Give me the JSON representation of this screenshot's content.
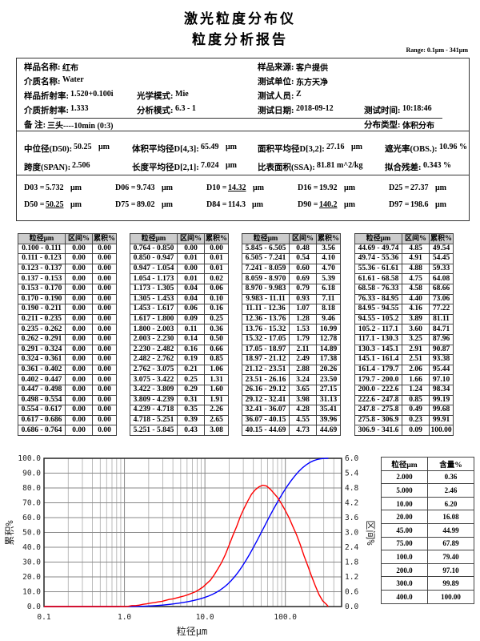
{
  "header": {
    "title1": "激光粒度分布仪",
    "title2": "粒度分析报告",
    "range": "Range: 0.1μm - 341μm"
  },
  "info": {
    "sample_name_label": "样品名称:",
    "sample_name": "红布",
    "medium_name_label": "介质名称:",
    "medium_name": "Water",
    "sample_ri_label": "样品折射率:",
    "sample_ri": "1.520+0.100i",
    "optical_model_label": "光学模式:",
    "optical_model": "Mie",
    "medium_ri_label": "介质折射率:",
    "medium_ri": "1.333",
    "analysis_mode_label": "分析模式:",
    "analysis_mode": "6.3 - 1",
    "remark_label": "备  注:",
    "remark": "三头----10min  (0:3)",
    "source_label": "样品来源:",
    "source": "客户提供",
    "unit_label": "测试单位:",
    "unit": "东方天净",
    "operator_label": "测试人员:",
    "operator": "Z",
    "date_label": "测试日期:",
    "date": "2018-09-12",
    "time_label": "测试时间:",
    "time": "10:18:46",
    "dist_type_label": "分布类型:",
    "dist_type": "体积分布"
  },
  "stats": {
    "d50_label": "中位径(D50):",
    "d50": "50.25",
    "d50_unit": "μm",
    "d43_label": "体积平均径D[4,3]:",
    "d43": "65.49",
    "d43_unit": "μm",
    "d32_label": "面积平均径D[3,2]:",
    "d32": "27.16",
    "d32_unit": "μm",
    "obs_label": "遮光率(OBS.):",
    "obs": "10.96 %",
    "span_label": "跨度(SPAN):",
    "span": "2.506",
    "d21_label": "长度平均径D[2,1]:",
    "d21": "7.024",
    "d21_unit": "μm",
    "ssa_label": "比表面积(SSA):",
    "ssa": "81.81  m^2/kg",
    "residual_label": "拟合残差:",
    "residual": "0.343  %"
  },
  "dvalues": [
    {
      "label": "D03 =",
      "value": "5.732",
      "unit": "μm",
      "underline": false
    },
    {
      "label": "D06 =",
      "value": "9.743",
      "unit": "μm",
      "underline": false
    },
    {
      "label": "D10 =",
      "value": "14.32",
      "unit": "μm",
      "underline": true
    },
    {
      "label": "D16 =",
      "value": "19.92",
      "unit": "μm",
      "underline": false
    },
    {
      "label": "D25 =",
      "value": "27.37",
      "unit": "μm",
      "underline": false
    },
    {
      "label": "D50 =",
      "value": "50.25",
      "unit": "μm",
      "underline": true
    },
    {
      "label": "D75 =",
      "value": "89.02",
      "unit": "μm",
      "underline": false
    },
    {
      "label": "D84 =",
      "value": "114.3",
      "unit": "μm",
      "underline": false
    },
    {
      "label": "D90 =",
      "value": "140.2",
      "unit": "μm",
      "underline": true
    },
    {
      "label": "D97 =",
      "value": "198.6",
      "unit": "μm",
      "underline": false
    }
  ],
  "table": {
    "headers": [
      "粒径μm",
      "区间%",
      "累积%"
    ],
    "rows": [
      [
        "0.100 - 0.111",
        "0.00",
        "0.00"
      ],
      [
        "0.111 - 0.123",
        "0.00",
        "0.00"
      ],
      [
        "0.123 - 0.137",
        "0.00",
        "0.00"
      ],
      [
        "0.137 - 0.153",
        "0.00",
        "0.00"
      ],
      [
        "0.153 - 0.170",
        "0.00",
        "0.00"
      ],
      [
        "0.170 - 0.190",
        "0.00",
        "0.00"
      ],
      [
        "0.190 - 0.211",
        "0.00",
        "0.00"
      ],
      [
        "0.211 - 0.235",
        "0.00",
        "0.00"
      ],
      [
        "0.235 - 0.262",
        "0.00",
        "0.00"
      ],
      [
        "0.262 - 0.291",
        "0.00",
        "0.00"
      ],
      [
        "0.291 - 0.324",
        "0.00",
        "0.00"
      ],
      [
        "0.324 - 0.361",
        "0.00",
        "0.00"
      ],
      [
        "0.361 - 0.402",
        "0.00",
        "0.00"
      ],
      [
        "0.402 - 0.447",
        "0.00",
        "0.00"
      ],
      [
        "0.447 - 0.498",
        "0.00",
        "0.00"
      ],
      [
        "0.498 - 0.554",
        "0.00",
        "0.00"
      ],
      [
        "0.554 - 0.617",
        "0.00",
        "0.00"
      ],
      [
        "0.617 - 0.686",
        "0.00",
        "0.00"
      ],
      [
        "0.686 - 0.764",
        "0.00",
        "0.00"
      ],
      [
        "0.764 - 0.850",
        "0.00",
        "0.00"
      ],
      [
        "0.850 - 0.947",
        "0.01",
        "0.01"
      ],
      [
        "0.947 - 1.054",
        "0.00",
        "0.01"
      ],
      [
        "1.054 - 1.173",
        "0.01",
        "0.02"
      ],
      [
        "1.173 - 1.305",
        "0.04",
        "0.06"
      ],
      [
        "1.305 - 1.453",
        "0.04",
        "0.10"
      ],
      [
        "1.453 - 1.617",
        "0.06",
        "0.16"
      ],
      [
        "1.617 - 1.800",
        "0.09",
        "0.25"
      ],
      [
        "1.800 - 2.003",
        "0.11",
        "0.36"
      ],
      [
        "2.003 - 2.230",
        "0.14",
        "0.50"
      ],
      [
        "2.230 - 2.482",
        "0.16",
        "0.66"
      ],
      [
        "2.482 - 2.762",
        "0.19",
        "0.85"
      ],
      [
        "2.762 - 3.075",
        "0.21",
        "1.06"
      ],
      [
        "3.075 - 3.422",
        "0.25",
        "1.31"
      ],
      [
        "3.422 - 3.809",
        "0.29",
        "1.60"
      ],
      [
        "3.809 - 4.239",
        "0.31",
        "1.91"
      ],
      [
        "4.239 - 4.718",
        "0.35",
        "2.26"
      ],
      [
        "4.718 - 5.251",
        "0.39",
        "2.65"
      ],
      [
        "5.251 - 5.845",
        "0.43",
        "3.08"
      ],
      [
        "5.845 - 6.505",
        "0.48",
        "3.56"
      ],
      [
        "6.505 - 7.241",
        "0.54",
        "4.10"
      ],
      [
        "7.241 - 8.059",
        "0.60",
        "4.70"
      ],
      [
        "8.059 - 8.970",
        "0.69",
        "5.39"
      ],
      [
        "8.970 - 9.983",
        "0.79",
        "6.18"
      ],
      [
        "9.983 - 11.11",
        "0.93",
        "7.11"
      ],
      [
        "11.11 - 12.36",
        "1.07",
        "8.18"
      ],
      [
        "12.36 - 13.76",
        "1.28",
        "9.46"
      ],
      [
        "13.76 - 15.32",
        "1.53",
        "10.99"
      ],
      [
        "15.32 - 17.05",
        "1.79",
        "12.78"
      ],
      [
        "17.05 - 18.97",
        "2.11",
        "14.89"
      ],
      [
        "18.97 - 21.12",
        "2.49",
        "17.38"
      ],
      [
        "21.12 - 23.51",
        "2.88",
        "20.26"
      ],
      [
        "23.51 - 26.16",
        "3.24",
        "23.50"
      ],
      [
        "26.16 - 29.12",
        "3.65",
        "27.15"
      ],
      [
        "29.12 - 32.41",
        "3.98",
        "31.13"
      ],
      [
        "32.41 - 36.07",
        "4.28",
        "35.41"
      ],
      [
        "36.07 - 40.15",
        "4.55",
        "39.96"
      ],
      [
        "40.15 - 44.69",
        "4.73",
        "44.69"
      ],
      [
        "44.69 - 49.74",
        "4.85",
        "49.54"
      ],
      [
        "49.74 - 55.36",
        "4.91",
        "54.45"
      ],
      [
        "55.36 - 61.61",
        "4.88",
        "59.33"
      ],
      [
        "61.61 - 68.58",
        "4.75",
        "64.08"
      ],
      [
        "68.58 - 76.33",
        "4.58",
        "68.66"
      ],
      [
        "76.33 - 84.95",
        "4.40",
        "73.06"
      ],
      [
        "84.95 - 94.55",
        "4.16",
        "77.22"
      ],
      [
        "94.55 - 105.2",
        "3.89",
        "81.11"
      ],
      [
        "105.2 - 117.1",
        "3.60",
        "84.71"
      ],
      [
        "117.1 - 130.3",
        "3.25",
        "87.96"
      ],
      [
        "130.3 - 145.1",
        "2.91",
        "90.87"
      ],
      [
        "145.1 - 161.4",
        "2.51",
        "93.38"
      ],
      [
        "161.4 - 179.7",
        "2.06",
        "95.44"
      ],
      [
        "179.7 - 200.0",
        "1.66",
        "97.10"
      ],
      [
        "200.0 - 222.6",
        "1.24",
        "98.34"
      ],
      [
        "222.6 - 247.8",
        "0.85",
        "99.19"
      ],
      [
        "247.8 - 275.8",
        "0.49",
        "99.68"
      ],
      [
        "275.8 - 306.9",
        "0.23",
        "99.91"
      ],
      [
        "306.9 - 341.6",
        "0.09",
        "100.00"
      ]
    ]
  },
  "content_table": {
    "headers": [
      "粒径μm",
      "含量%"
    ],
    "rows": [
      [
        "2.000",
        "0.36"
      ],
      [
        "5.000",
        "2.46"
      ],
      [
        "10.00",
        "6.20"
      ],
      [
        "20.00",
        "16.08"
      ],
      [
        "45.00",
        "44.99"
      ],
      [
        "75.00",
        "67.89"
      ],
      [
        "100.0",
        "79.40"
      ],
      [
        "200.0",
        "97.10"
      ],
      [
        "300.0",
        "99.89"
      ],
      [
        "400.0",
        "100.00"
      ]
    ]
  },
  "chart": {
    "xlabel": "粒径μm",
    "ylabel_left": "累积%",
    "ylabel_right": "区间%",
    "x_scale": "log",
    "xlim": [
      0.1,
      500
    ],
    "ylim_left": [
      0,
      100
    ],
    "ylim_right": [
      0,
      6
    ],
    "x_ticks": [
      "0.1",
      "1.0",
      "10.0",
      "100.0"
    ],
    "y_ticks_left": [
      "0.0",
      "10.0",
      "20.0",
      "30.0",
      "40.0",
      "50.0",
      "60.0",
      "70.0",
      "80.0",
      "90.0",
      "100.0"
    ],
    "y_ticks_right": [
      "0.0",
      "0.6",
      "1.2",
      "1.8",
      "2.4",
      "3.0",
      "3.6",
      "4.2",
      "4.8",
      "5.4",
      "6.0"
    ],
    "cumulative_color": "#0000ff",
    "interval_color": "#ff0000",
    "grid": true
  }
}
